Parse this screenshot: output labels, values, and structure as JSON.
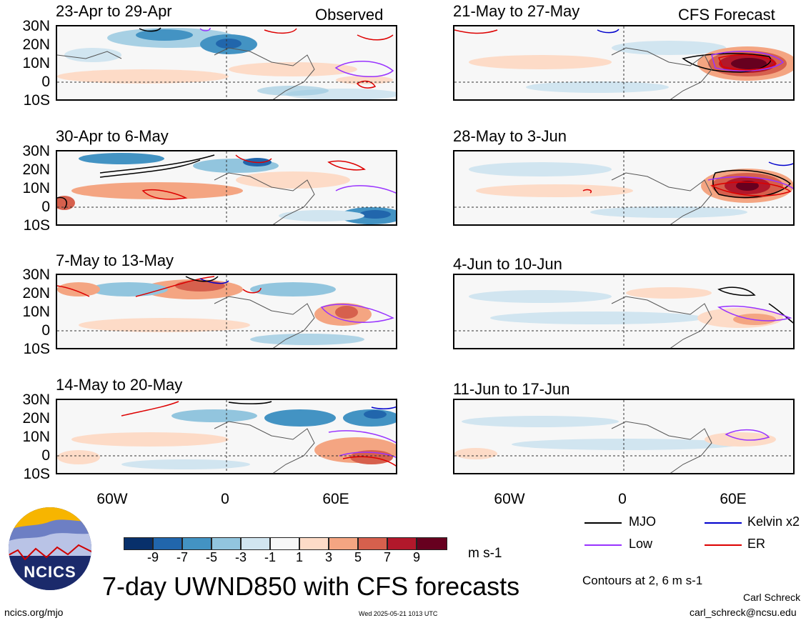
{
  "left_header": "Observed",
  "right_header": "CFS Forecast",
  "lat_labels": [
    "30N",
    "20N",
    "10N",
    "0",
    "10S"
  ],
  "lon_labels": [
    "60W",
    "0",
    "60E"
  ],
  "panels_left": [
    {
      "title": "23-Apr to 29-Apr"
    },
    {
      "title": "30-Apr to 6-May"
    },
    {
      "title": "7-May to 13-May"
    },
    {
      "title": "14-May to 20-May"
    }
  ],
  "panels_right": [
    {
      "title": "21-May to 27-May"
    },
    {
      "title": "28-May to 3-Jun"
    },
    {
      "title": "4-Jun to 10-Jun"
    },
    {
      "title": "11-Jun to 17-Jun"
    }
  ],
  "colorbar": {
    "tick_labels": [
      "-9",
      "-7",
      "-5",
      "-3",
      "-1",
      "1",
      "3",
      "5",
      "7",
      "9"
    ],
    "colors": [
      "#08306b",
      "#2166ac",
      "#4393c3",
      "#92c5de",
      "#d1e5f0",
      "#f7f7f7",
      "#fddbc7",
      "#f4a582",
      "#d6604d",
      "#b2182b",
      "#67001f"
    ],
    "units": "m s-1"
  },
  "legend": [
    {
      "label": "MJO",
      "color": "#000000"
    },
    {
      "label": "Kelvin x2",
      "color": "#0000cc"
    },
    {
      "label": "Low",
      "color": "#9933ff"
    },
    {
      "label": "ER",
      "color": "#dd0000"
    }
  ],
  "contour_note": "Contours at 2, 6 m s-1",
  "main_title": "7-day UWND850 with CFS forecasts",
  "author": "Carl Schreck",
  "email": "carl_schreck@ncsu.edu",
  "site": "ncics.org/mjo",
  "timestamp": "Wed 2025-05-21 1013 UTC",
  "logo_text": "NCICS"
}
